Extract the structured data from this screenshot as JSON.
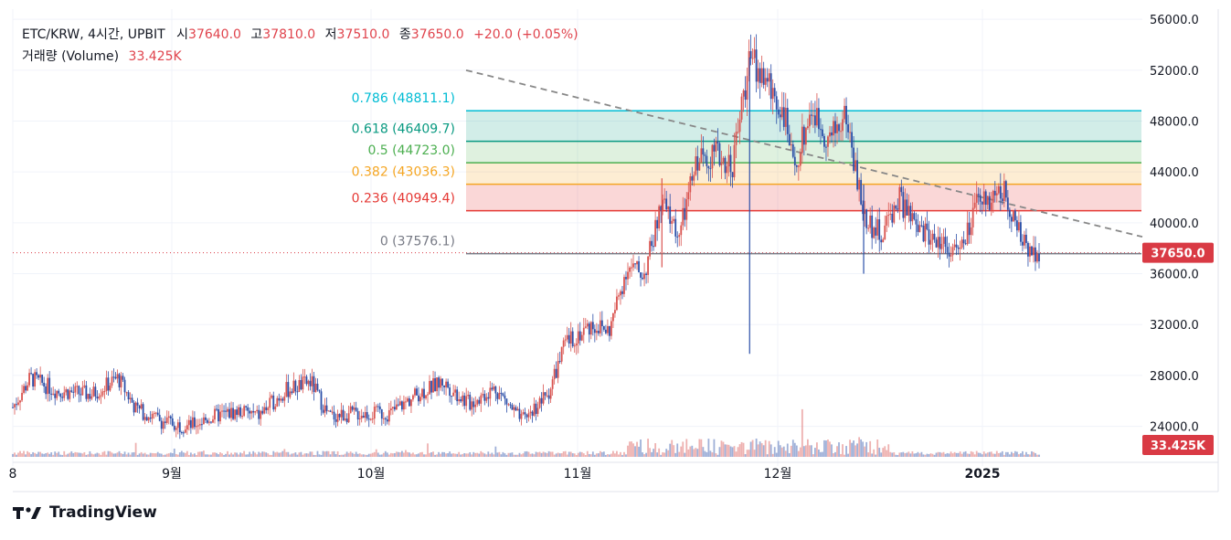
{
  "header": {
    "symbol": "ETC/KRW, 4시간, UPBIT",
    "open_label": "시",
    "open": "37640.0",
    "high_label": "고",
    "high": "37810.0",
    "low_label": "저",
    "low": "37510.0",
    "close_label": "종",
    "close": "37650.0",
    "change": "+20.0 (+0.05%)",
    "volume_label": "거래량 (Volume)",
    "volume": "33.425K"
  },
  "brand": "TradingView",
  "colors": {
    "up": "#26a69a",
    "candle_up": "#d9534f",
    "candle_down": "#2b4fa8",
    "accent_red": "#d93a44",
    "fib_0786": "#00bcd4",
    "fib_0618": "#089981",
    "fib_05": "#4caf50",
    "fib_0382": "#f5a623",
    "fib_0236": "#e53935",
    "fib_0": "#787b86"
  },
  "chart_data": {
    "type": "candlestick",
    "y_axis": {
      "ticks": [
        "56000.0",
        "52000.0",
        "48000.0",
        "44000.0",
        "40000.0",
        "36000.0",
        "32000.0",
        "28000.0",
        "24000.0"
      ],
      "range": [
        21600,
        56800
      ],
      "side": "right"
    },
    "x_axis": {
      "ticks": [
        "8",
        "9월",
        "10월",
        "11월",
        "12월",
        "2025"
      ]
    },
    "price_label": "37650.0",
    "volume_label": "33.425K",
    "fib_levels": [
      {
        "ratio": "0.786",
        "value": 48811.1,
        "label": "0.786 (48811.1)",
        "color": "#00bcd4",
        "fill": "rgba(0,188,212,0.18)"
      },
      {
        "ratio": "0.618",
        "value": 46409.7,
        "label": "0.618 (46409.7)",
        "color": "#089981",
        "fill": "rgba(8,153,129,0.18)"
      },
      {
        "ratio": "0.5",
        "value": 44723.0,
        "label": "0.5 (44723.0)",
        "color": "#4caf50",
        "fill": "rgba(76,175,80,0.18)"
      },
      {
        "ratio": "0.382",
        "value": 43036.3,
        "label": "0.382 (43036.3)",
        "color": "#f5a623",
        "fill": "rgba(245,166,35,0.20)"
      },
      {
        "ratio": "0.236",
        "value": 40949.4,
        "label": "0.236 (40949.4)",
        "color": "#e53935",
        "fill": "rgba(229,57,53,0.20)"
      },
      {
        "ratio": "0",
        "value": 37576.1,
        "label": "0 (37576.1)",
        "color": "#787b86",
        "fill": "rgba(0,0,0,0)"
      }
    ],
    "price_path": [
      [
        0,
        25500
      ],
      [
        0.02,
        27800
      ],
      [
        0.05,
        26800
      ],
      [
        0.09,
        26500
      ],
      [
        0.12,
        27800
      ],
      [
        0.14,
        25400
      ],
      [
        0.17,
        24400
      ],
      [
        0.2,
        24000
      ],
      [
        0.23,
        24800
      ],
      [
        0.26,
        25200
      ],
      [
        0.28,
        24800
      ],
      [
        0.31,
        26800
      ],
      [
        0.34,
        27500
      ],
      [
        0.36,
        24800
      ],
      [
        0.39,
        25000
      ],
      [
        0.43,
        25000
      ],
      [
        0.46,
        26500
      ],
      [
        0.49,
        27500
      ],
      [
        0.52,
        25800
      ],
      [
        0.55,
        27000
      ],
      [
        0.58,
        24400
      ],
      [
        0.61,
        26500
      ],
      [
        0.63,
        30500
      ],
      [
        0.66,
        32000
      ],
      [
        0.68,
        31500
      ],
      [
        0.7,
        36500
      ],
      [
        0.72,
        36000
      ],
      [
        0.74,
        41500
      ],
      [
        0.76,
        39000
      ],
      [
        0.78,
        45000
      ],
      [
        0.8,
        45500
      ],
      [
        0.82,
        44500
      ],
      [
        0.84,
        53000
      ],
      [
        0.86,
        51000
      ],
      [
        0.88,
        48500
      ],
      [
        0.89,
        44000
      ],
      [
        0.91,
        49000
      ],
      [
        0.93,
        46500
      ],
      [
        0.95,
        48500
      ],
      [
        0.97,
        40500
      ],
      [
        0.99,
        39000
      ],
      [
        1.01,
        42000
      ],
      [
        1.03,
        39500
      ],
      [
        1.06,
        38500
      ],
      [
        1.08,
        37600
      ],
      [
        1.1,
        41500
      ],
      [
        1.13,
        42500
      ],
      [
        1.15,
        38500
      ],
      [
        1.17,
        37650
      ]
    ]
  }
}
